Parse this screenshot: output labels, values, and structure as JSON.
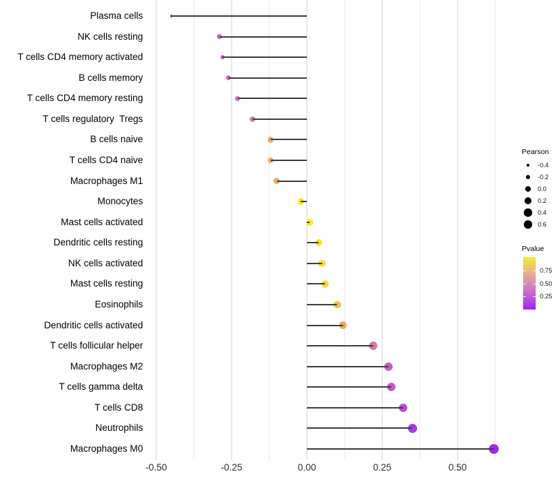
{
  "figure": {
    "background": "#ffffff"
  },
  "chart_data": {
    "type": "scatter",
    "variant": "lollipop",
    "orientation": "horizontal",
    "title": "",
    "xlabel": "",
    "ylabel": "",
    "xlim": [
      -0.53,
      0.65
    ],
    "grid": true,
    "x_ticks": [
      {
        "label": "-0.50",
        "value": -0.5
      },
      {
        "label": "-0.25",
        "value": -0.25
      },
      {
        "label": "0.00",
        "value": 0.0
      },
      {
        "label": "0.25",
        "value": 0.25
      },
      {
        "label": "0.50",
        "value": 0.5
      }
    ],
    "x_minor_ticks": [
      -0.375,
      -0.125,
      0.125,
      0.375,
      0.625
    ],
    "stem_color": "#3d3d3d",
    "points": [
      {
        "label": "Plasma cells",
        "pearson": -0.45,
        "color": "#9C2BE5"
      },
      {
        "label": "NK cells resting",
        "pearson": -0.29,
        "color": "#C364C8"
      },
      {
        "label": "T cells CD4 memory activated",
        "pearson": -0.28,
        "color": "#C566C6"
      },
      {
        "label": "B cells memory",
        "pearson": -0.26,
        "color": "#C869BD"
      },
      {
        "label": "T cells CD4 memory resting",
        "pearson": -0.23,
        "color": "#CC70B3"
      },
      {
        "label": "T cells regulatory  Tregs",
        "pearson": -0.18,
        "color": "#D8838F"
      },
      {
        "label": "B cells naive",
        "pearson": -0.12,
        "color": "#EBAE64"
      },
      {
        "label": "T cells CD4 naive",
        "pearson": -0.12,
        "color": "#EBAE64"
      },
      {
        "label": "Macrophages M1",
        "pearson": -0.1,
        "color": "#ECB168"
      },
      {
        "label": "Monocytes",
        "pearson": -0.02,
        "color": "#F9EA15"
      },
      {
        "label": "Mast cells activated",
        "pearson": 0.01,
        "color": "#FAEE0E"
      },
      {
        "label": "Dendritic cells resting",
        "pearson": 0.04,
        "color": "#F7E62A"
      },
      {
        "label": "NK cells activated",
        "pearson": 0.05,
        "color": "#F5E233"
      },
      {
        "label": "Mast cells resting",
        "pearson": 0.06,
        "color": "#F2DC3C"
      },
      {
        "label": "Eosinophils",
        "pearson": 0.1,
        "color": "#EFC353"
      },
      {
        "label": "Dendritic cells activated",
        "pearson": 0.12,
        "color": "#EAAC60"
      },
      {
        "label": "T cells follicular helper",
        "pearson": 0.22,
        "color": "#D577A5"
      },
      {
        "label": "Macrophages M2",
        "pearson": 0.27,
        "color": "#C75FC2"
      },
      {
        "label": "T cells gamma delta",
        "pearson": 0.28,
        "color": "#C457CC"
      },
      {
        "label": "T cells CD8",
        "pearson": 0.32,
        "color": "#BC4BD4"
      },
      {
        "label": "Neutrophils",
        "pearson": 0.35,
        "color": "#AD3ADD"
      },
      {
        "label": "Macrophages M0",
        "pearson": 0.62,
        "color": "#A228E8"
      }
    ],
    "legend_size": {
      "title": "Pearson",
      "dot_color": "#000000",
      "entries": [
        {
          "label": "-0.4",
          "value": -0.4
        },
        {
          "label": "-0.2",
          "value": -0.2
        },
        {
          "label": "0.0",
          "value": 0.0
        },
        {
          "label": "0.2",
          "value": 0.2
        },
        {
          "label": "0.4",
          "value": 0.4
        },
        {
          "label": "0.6",
          "value": 0.6
        }
      ]
    },
    "legend_color": {
      "title": "Pvalue",
      "range": [
        0,
        1
      ],
      "ticks": [
        {
          "label": "0.75",
          "value": 0.75
        },
        {
          "label": "0.50",
          "value": 0.5
        },
        {
          "label": "0.25",
          "value": 0.25
        }
      ],
      "gradient_bottom_to_top": [
        "#A322F2",
        "#C05CD8",
        "#D88BB4",
        "#EBBA85",
        "#F9EB25"
      ]
    }
  }
}
